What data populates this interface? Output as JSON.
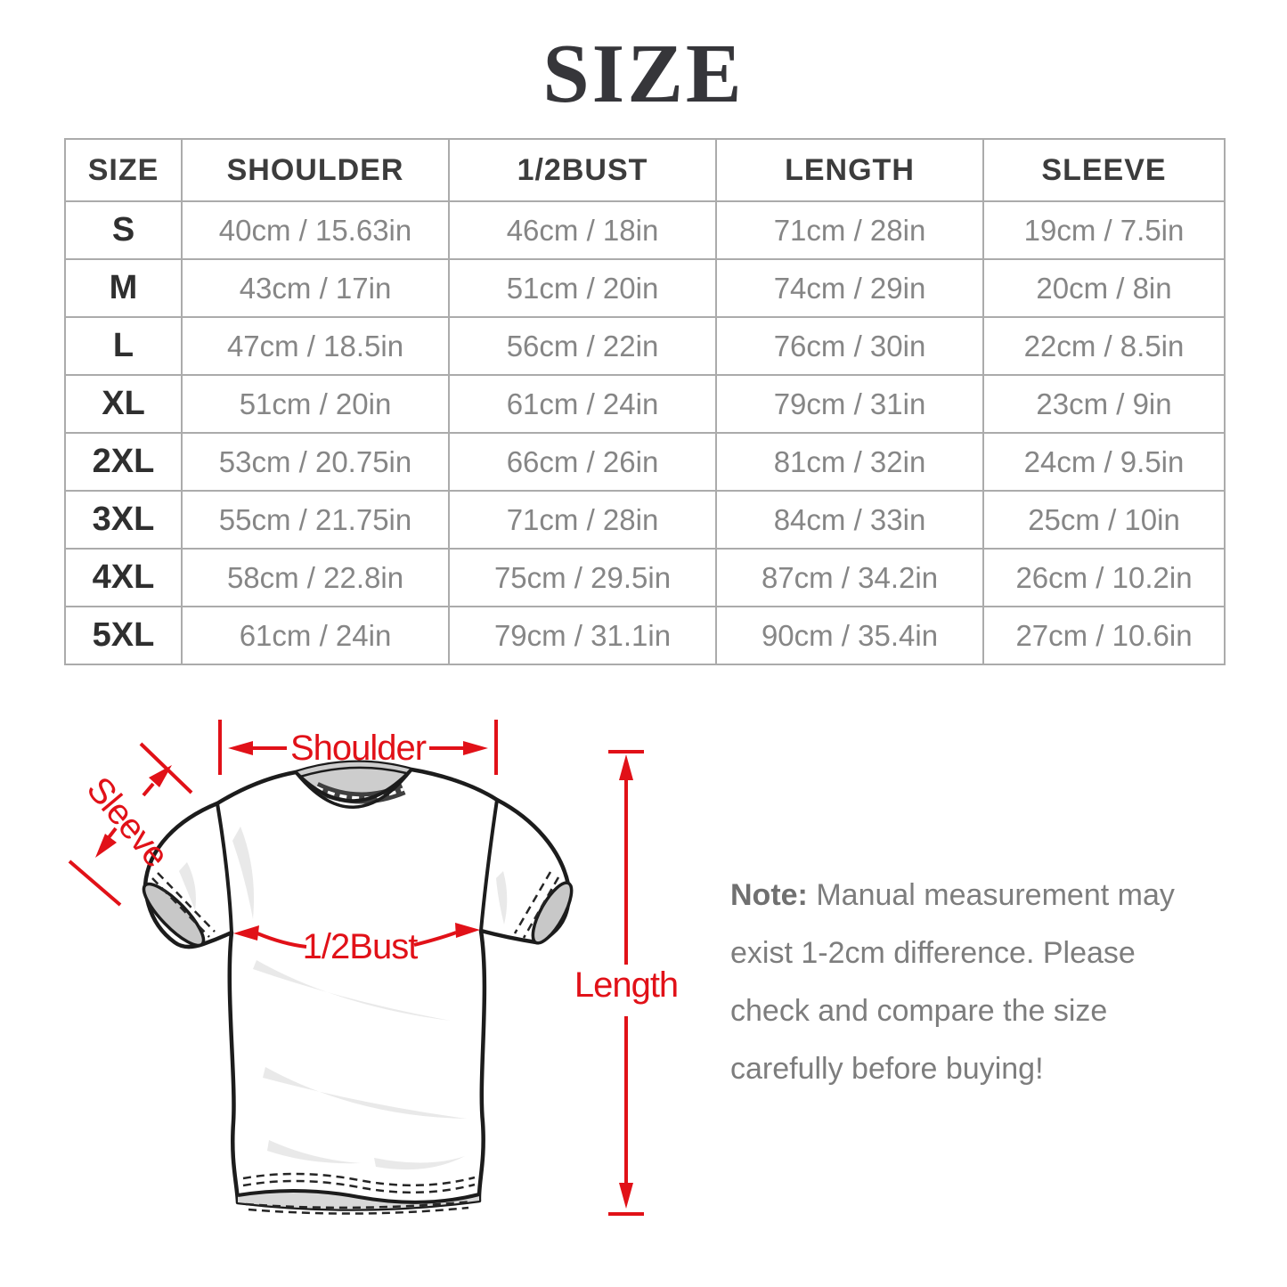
{
  "title": "SIZE",
  "table": {
    "headers": [
      "SIZE",
      "SHOULDER",
      "1/2BUST",
      "LENGTH",
      "SLEEVE"
    ],
    "rows": [
      {
        "size": "S",
        "shoulder": "40cm / 15.63in",
        "half_bust": "46cm / 18in",
        "length": "71cm / 28in",
        "sleeve": "19cm / 7.5in"
      },
      {
        "size": "M",
        "shoulder": "43cm / 17in",
        "half_bust": "51cm / 20in",
        "length": "74cm / 29in",
        "sleeve": "20cm / 8in"
      },
      {
        "size": "L",
        "shoulder": "47cm / 18.5in",
        "half_bust": "56cm / 22in",
        "length": "76cm / 30in",
        "sleeve": "22cm / 8.5in"
      },
      {
        "size": "XL",
        "shoulder": "51cm / 20in",
        "half_bust": "61cm / 24in",
        "length": "79cm / 31in",
        "sleeve": "23cm / 9in"
      },
      {
        "size": "2XL",
        "shoulder": "53cm / 20.75in",
        "half_bust": "66cm / 26in",
        "length": "81cm / 32in",
        "sleeve": "24cm / 9.5in"
      },
      {
        "size": "3XL",
        "shoulder": "55cm / 21.75in",
        "half_bust": "71cm / 28in",
        "length": "84cm / 33in",
        "sleeve": "25cm / 10in"
      },
      {
        "size": "4XL",
        "shoulder": "58cm / 22.8in",
        "half_bust": "75cm / 29.5in",
        "length": "87cm / 34.2in",
        "sleeve": "26cm / 10.2in"
      },
      {
        "size": "5XL",
        "shoulder": "61cm / 24in",
        "half_bust": "79cm / 31.1in",
        "length": "90cm / 35.4in",
        "sleeve": "27cm / 10.6in"
      }
    ]
  },
  "diagram": {
    "accent_color": "#e11118",
    "labels": {
      "shoulder": "Shoulder",
      "sleeve": "Sleeve",
      "half_bust": "1/2Bust",
      "length": "Length"
    }
  },
  "note": {
    "label": "Note:",
    "lines": [
      "Manual measurement may",
      "exist 1-2cm difference. Please",
      "check and compare the size",
      "carefully before buying!"
    ]
  }
}
